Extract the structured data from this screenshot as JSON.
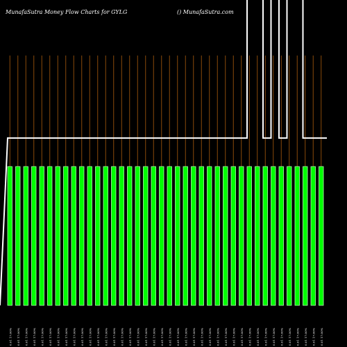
{
  "chart_data": {
    "type": "bar",
    "title": "MunafaSutra  Money Flow  Charts for GYLG",
    "watermark": "() MunafaSutra.com",
    "categories": [
      "0.01 17.00%",
      "0.01 17.00%",
      "0.01 17.00%",
      "0.01 17.00%",
      "0.01 17.00%",
      "0.01 17.00%",
      "0.01 17.00%",
      "0.01 17.00%",
      "0.01 17.00%",
      "0.01 17.00%",
      "0.01 17.00%",
      "0.01 17.00%",
      "0.01 17.00%",
      "0.01 17.00%",
      "0.01 17.00%",
      "0.01 17.00%",
      "0.01 17.00%",
      "0.01 17.00%",
      "0.01 17.00%",
      "0.01 17.00%",
      "0.01 17.00%",
      "0.01 17.00%",
      "0.01 17.00%",
      "0.01 17.00%",
      "0.01 17.00%",
      "0.01 17.00%",
      "0.01 17.00%",
      "0.01 17.00%",
      "0.01 17.00%",
      "0.01 17.00%",
      "0.01 17.00%",
      "0.01 17.00%",
      "0.01 17.00%",
      "0.01 17.00%",
      "0.01 17.00%",
      "0.01 17.00%",
      "0.01 17.00%",
      "0.01 17.00%",
      "0.01 17.00%",
      "0.01 17.00%"
    ],
    "bar_values": [
      1,
      1,
      1,
      1,
      1,
      1,
      1,
      1,
      1,
      1,
      1,
      1,
      1,
      1,
      1,
      1,
      1,
      1,
      1,
      1,
      1,
      1,
      1,
      1,
      1,
      1,
      1,
      1,
      1,
      1,
      1,
      1,
      1,
      1,
      1,
      1,
      1,
      1,
      1,
      1
    ],
    "line_values": [
      0,
      0.6,
      0.6,
      0.6,
      0.6,
      0.6,
      0.6,
      0.6,
      0.6,
      0.6,
      0.6,
      0.6,
      0.6,
      0.6,
      0.6,
      0.6,
      0.6,
      0.6,
      0.6,
      0.6,
      0.6,
      0.6,
      0.6,
      0.6,
      0.6,
      0.6,
      0.6,
      0.6,
      0.6,
      0.6,
      1.1,
      1.1,
      0.6,
      1.1,
      0.6,
      1.1,
      1.1,
      0.6,
      0.6,
      0.6
    ],
    "ylim": [
      0,
      1.1
    ],
    "grid": true,
    "colors": {
      "background": "#000000",
      "bar": "#00ff00",
      "bar_outline": "#b3ffb3",
      "line": "#ffffff",
      "gridline": "#8a4a0a",
      "text": "#ffffff"
    }
  }
}
